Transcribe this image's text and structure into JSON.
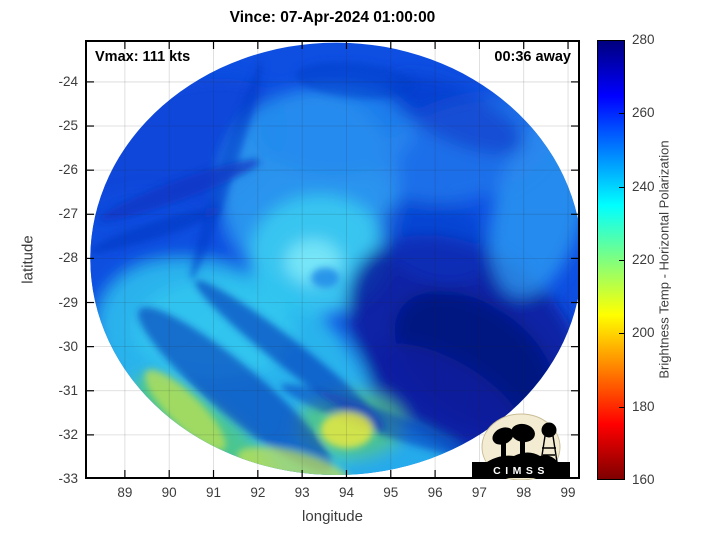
{
  "figure": {
    "title": "Vince: 07-Apr-2024 01:00:00"
  },
  "annotations": {
    "vmax": "Vmax: 111 kts",
    "eta": "00:36 away"
  },
  "axes": {
    "xlabel": "longitude",
    "ylabel": "latitude",
    "xlim": [
      88.1,
      99.27
    ],
    "ylim": [
      -33.0,
      -23.05
    ],
    "xticks": [
      89,
      90,
      91,
      92,
      93,
      94,
      95,
      96,
      97,
      98,
      99
    ],
    "yticks": [
      -24,
      -25,
      -26,
      -27,
      -28,
      -29,
      -30,
      -31,
      -32,
      -33
    ],
    "grid_color": "rgba(38,38,38,0.18)",
    "frame_color": "#000000"
  },
  "colorbar": {
    "label": "Brightness Temp - Horizontal Polarization",
    "min": 160,
    "max": 280,
    "ticks": [
      160,
      180,
      200,
      220,
      240,
      260,
      280
    ],
    "stops": [
      {
        "at": 0.0,
        "color": "#7F0000"
      },
      {
        "at": 0.125,
        "color": "#FF0000"
      },
      {
        "at": 0.375,
        "color": "#FFFF00"
      },
      {
        "at": 0.625,
        "color": "#00FFFF"
      },
      {
        "at": 0.875,
        "color": "#0000FF"
      },
      {
        "at": 1.0,
        "color": "#00007F"
      }
    ]
  },
  "logo": {
    "text": "CIMSS",
    "circle_color": "#f4ecd2",
    "circle_edge_color": "#c9bd96",
    "art_color": "#000000",
    "banner_color": "#000000",
    "text_color": "#ffffff"
  },
  "chart_data": {
    "type": "heatmap",
    "title": "Vince: 07-Apr-2024 01:00:00",
    "subtitle_left": "Vmax: 111 kts",
    "subtitle_right": "00:36 away",
    "storm": {
      "name": "Vince",
      "datetime": "07-Apr-2024 01:00:00",
      "vmax_kts": 111,
      "time_offset": "00:36 away"
    },
    "xlabel": "longitude",
    "ylabel": "latitude",
    "xlim": [
      88.1,
      99.27
    ],
    "ylim": [
      -33.0,
      -23.05
    ],
    "xticks": [
      89,
      90,
      91,
      92,
      93,
      94,
      95,
      96,
      97,
      98,
      99
    ],
    "yticks": [
      -24,
      -25,
      -26,
      -27,
      -28,
      -29,
      -30,
      -31,
      -32,
      -33
    ],
    "grid": true,
    "colorbar": {
      "label": "Brightness Temp - Horizontal Polarization",
      "range": [
        160,
        280
      ],
      "ticks": [
        160,
        180,
        200,
        220,
        240,
        260,
        280
      ]
    },
    "swath_disk": {
      "center_lon": 93.77,
      "center_lat": -28.01,
      "radius_lon_deg": 5.55,
      "radius_lat_deg": 4.9,
      "base_color": "#0e4fe2",
      "base_tb_K": 259
    },
    "regions": [
      {
        "name": "upper-left-band",
        "lon": 90.13,
        "lat": -25.77,
        "rx_deg": 2.71,
        "ry_deg": 1.59,
        "rot_deg": -25,
        "color": "#0d46d8",
        "opacity": 0.85,
        "tb_K": 262,
        "blur": "soft"
      },
      {
        "name": "left-mid-band",
        "lon": 89.45,
        "lat": -28.26,
        "rx_deg": 2.03,
        "ry_deg": 1.81,
        "rot_deg": 0,
        "color": "#0e4fe0",
        "opacity": 0.8,
        "tb_K": 261,
        "blur": "soft"
      },
      {
        "name": "left-streak-1",
        "lon": 90.24,
        "lat": -26.45,
        "rx_deg": 1.92,
        "ry_deg": 0.23,
        "rot_deg": -20,
        "color": "#0a35c2",
        "opacity": 0.7,
        "tb_K": 265,
        "blur": "fine"
      },
      {
        "name": "left-streak-2",
        "lon": 89.68,
        "lat": -27.36,
        "rx_deg": 1.58,
        "ry_deg": 0.18,
        "rot_deg": -18,
        "color": "#0a35c2",
        "opacity": 0.6,
        "tb_K": 265,
        "blur": "fine"
      },
      {
        "name": "inner-light-area",
        "lon": 93.18,
        "lat": -26.45,
        "rx_deg": 2.03,
        "ry_deg": 2.27,
        "rot_deg": 0,
        "color": "#2f9bf0",
        "opacity": 0.9,
        "tb_K": 250,
        "blur": "soft"
      },
      {
        "name": "upper-mid-light",
        "lon": 93.74,
        "lat": -25.09,
        "rx_deg": 1.81,
        "ry_deg": 1.02,
        "rot_deg": 0,
        "color": "#2389ee",
        "opacity": 0.8,
        "tb_K": 253,
        "blur": "soft"
      },
      {
        "name": "storm-center-cyan",
        "lon": 93.4,
        "lat": -27.92,
        "rx_deg": 1.58,
        "ry_deg": 1.36,
        "rot_deg": 0,
        "color": "#38c8f0",
        "opacity": 0.95,
        "tb_K": 240,
        "blur": "soft"
      },
      {
        "name": "storm-core-bright",
        "lon": 93.25,
        "lat": -28.08,
        "rx_deg": 0.63,
        "ry_deg": 0.5,
        "rot_deg": 0,
        "color": "#7de8f8",
        "opacity": 0.9,
        "tb_K": 234,
        "blur": "soft"
      },
      {
        "name": "eye-swirl-notch",
        "lon": 93.52,
        "lat": -28.44,
        "rx_deg": 0.32,
        "ry_deg": 0.23,
        "rot_deg": 0,
        "color": "#1e8ae8",
        "opacity": 0.85,
        "tb_K": 248,
        "blur": "fine"
      },
      {
        "name": "swath-seam",
        "lon": 91.3,
        "lat": -26.0,
        "rx_deg": 0.18,
        "ry_deg": 2.61,
        "rot_deg": 18,
        "color": "#0a3cc8",
        "opacity": 0.55,
        "tb_K": 264,
        "blur": "fine"
      },
      {
        "name": "seam-dark-band",
        "lon": 92.73,
        "lat": -30.19,
        "rx_deg": 2.71,
        "ry_deg": 0.32,
        "rot_deg": 38,
        "color": "#0930b8",
        "opacity": 0.6,
        "tb_K": 268,
        "blur": "fine"
      },
      {
        "name": "lower-left-dark-band",
        "lon": 91.49,
        "lat": -30.98,
        "rx_deg": 2.82,
        "ry_deg": 0.57,
        "rot_deg": 40,
        "color": "#0a2cb0",
        "opacity": 0.55,
        "tb_K": 268,
        "blur": "fine"
      },
      {
        "name": "right-dark-region",
        "lon": 96.68,
        "lat": -29.85,
        "rx_deg": 2.93,
        "ry_deg": 2.04,
        "rot_deg": 35,
        "color": "#081d9e",
        "opacity": 0.9,
        "tb_K": 273,
        "blur": "soft"
      },
      {
        "name": "right-dark-core",
        "lon": 96.9,
        "lat": -30.3,
        "rx_deg": 2.03,
        "ry_deg": 1.25,
        "rot_deg": 35,
        "color": "#051278",
        "opacity": 0.8,
        "tb_K": 277,
        "blur": "soft"
      },
      {
        "name": "mid-right-dark-streak",
        "lon": 96.0,
        "lat": -27.58,
        "rx_deg": 1.35,
        "ry_deg": 0.91,
        "rot_deg": 20,
        "color": "#0c3cc8",
        "opacity": 0.5,
        "tb_K": 264,
        "blur": "soft"
      },
      {
        "name": "right-rim-light",
        "lon": 98.37,
        "lat": -26.79,
        "rx_deg": 1.02,
        "ry_deg": 2.15,
        "rot_deg": 15,
        "color": "#2f9ff2",
        "opacity": 0.75,
        "tb_K": 249,
        "blur": "soft"
      },
      {
        "name": "top-right-light-arc",
        "lon": 96.68,
        "lat": -25.54,
        "rx_deg": 2.03,
        "ry_deg": 1.13,
        "rot_deg": -15,
        "color": "#2a86ee",
        "opacity": 0.6,
        "tb_K": 251,
        "blur": "soft"
      },
      {
        "name": "bottom-left-cyan",
        "lon": 91.49,
        "lat": -30.53,
        "rx_deg": 3.39,
        "ry_deg": 2.15,
        "rot_deg": 30,
        "color": "#2ec4ee",
        "opacity": 0.85,
        "tb_K": 241,
        "blur": "soft"
      },
      {
        "name": "left-center-cyan",
        "lon": 91.03,
        "lat": -29.62,
        "rx_deg": 1.81,
        "ry_deg": 1.13,
        "rot_deg": 0,
        "color": "#35ccf0",
        "opacity": 0.7,
        "tb_K": 239,
        "blur": "soft"
      },
      {
        "name": "warm-rim-green",
        "lon": 90.81,
        "lat": -32.0,
        "rx_deg": 2.03,
        "ry_deg": 0.68,
        "rot_deg": 38,
        "color": "#55cc7a",
        "opacity": 0.8,
        "tb_K": 225,
        "blur": "soft"
      },
      {
        "name": "warm-rim-yellowgreen",
        "lon": 90.36,
        "lat": -31.44,
        "rx_deg": 1.24,
        "ry_deg": 0.36,
        "rot_deg": 45,
        "color": "#b5de55",
        "opacity": 0.8,
        "tb_K": 218,
        "blur": "fine"
      },
      {
        "name": "bottom-rim-yellow",
        "lon": 92.84,
        "lat": -32.8,
        "rx_deg": 1.35,
        "ry_deg": 0.41,
        "rot_deg": 15,
        "color": "#c9e352",
        "opacity": 0.7,
        "tb_K": 216,
        "blur": "fine"
      },
      {
        "name": "bottom-cyan-band",
        "lon": 94.64,
        "lat": -32.57,
        "rx_deg": 2.03,
        "ry_deg": 0.91,
        "rot_deg": 10,
        "color": "#2cc0ee",
        "opacity": 0.8,
        "tb_K": 241,
        "blur": "soft"
      },
      {
        "name": "bottom-dark-streak",
        "lon": 94.64,
        "lat": -31.66,
        "rx_deg": 2.26,
        "ry_deg": 0.27,
        "rot_deg": 20,
        "color": "#0a34be",
        "opacity": 0.5,
        "tb_K": 266,
        "blur": "fine"
      },
      {
        "name": "bottom-right-navy",
        "lon": 96.22,
        "lat": -31.21,
        "rx_deg": 2.03,
        "ry_deg": 0.91,
        "rot_deg": 30,
        "color": "#0a1ea0",
        "opacity": 0.8,
        "tb_K": 271,
        "blur": "soft"
      },
      {
        "name": "bottom-center-green",
        "lon": 94.08,
        "lat": -31.78,
        "rx_deg": 1.24,
        "ry_deg": 0.79,
        "rot_deg": 0,
        "color": "#58c878",
        "opacity": 0.75,
        "tb_K": 224,
        "blur": "soft"
      },
      {
        "name": "bottom-center-yellow",
        "lon": 94.01,
        "lat": -31.89,
        "rx_deg": 0.59,
        "ry_deg": 0.41,
        "rot_deg": 0,
        "color": "#e8e83e",
        "opacity": 0.85,
        "tb_K": 211,
        "blur": "fine"
      },
      {
        "name": "top-dark-streak",
        "lon": 94.19,
        "lat": -23.96,
        "rx_deg": 1.35,
        "ry_deg": 0.41,
        "rot_deg": 5,
        "color": "#0b3cc8",
        "opacity": 0.5,
        "tb_K": 264,
        "blur": "fine"
      },
      {
        "name": "top-right-dark-band",
        "lon": 96.45,
        "lat": -24.75,
        "rx_deg": 1.69,
        "ry_deg": 0.63,
        "rot_deg": 25,
        "color": "#0b35c4",
        "opacity": 0.55,
        "tb_K": 265,
        "blur": "soft"
      }
    ]
  }
}
